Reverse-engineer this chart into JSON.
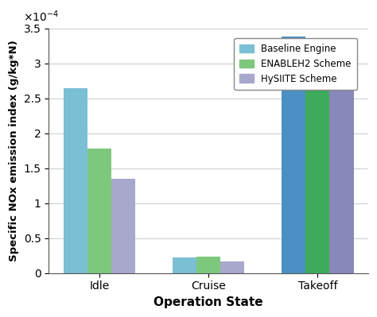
{
  "categories": [
    "Idle",
    "Cruise",
    "Takeoff"
  ],
  "series": [
    {
      "label": "Baseline Engine",
      "color_idle_cruise": "#7BBfd4",
      "color_takeoff": "#4A90C4",
      "values": [
        0.000265,
        2.2e-05,
        0.000338
      ]
    },
    {
      "label": "ENABLEH2 Scheme",
      "color_idle_cruise": "#7EC87E",
      "color_takeoff": "#3DAA5C",
      "values": [
        0.000178,
        2.35e-05,
        0.0003
      ]
    },
    {
      "label": "HySIITE Scheme",
      "color_idle_cruise": "#A8A8CC",
      "color_takeoff": "#8888BB",
      "values": [
        0.000135,
        1.7e-05,
        0.000296
      ]
    }
  ],
  "xlabel": "Operation State",
  "ylabel": "Specific NOx emission index (g/kg*N)",
  "ylim": [
    0,
    0.00035
  ],
  "yticks": [
    0,
    5e-05,
    0.0001,
    0.00015,
    0.0002,
    0.00025,
    0.0003,
    0.00035
  ],
  "ytick_labels": [
    "0",
    "0.5",
    "1",
    "1.5",
    "2",
    "2.5",
    "3",
    "3.5"
  ],
  "bar_width": 0.22,
  "background_color": "#ffffff",
  "grid_color": "#d0d0d0",
  "legend_colors": [
    "#7BBFD4",
    "#7EC87E",
    "#A8A8CC"
  ]
}
